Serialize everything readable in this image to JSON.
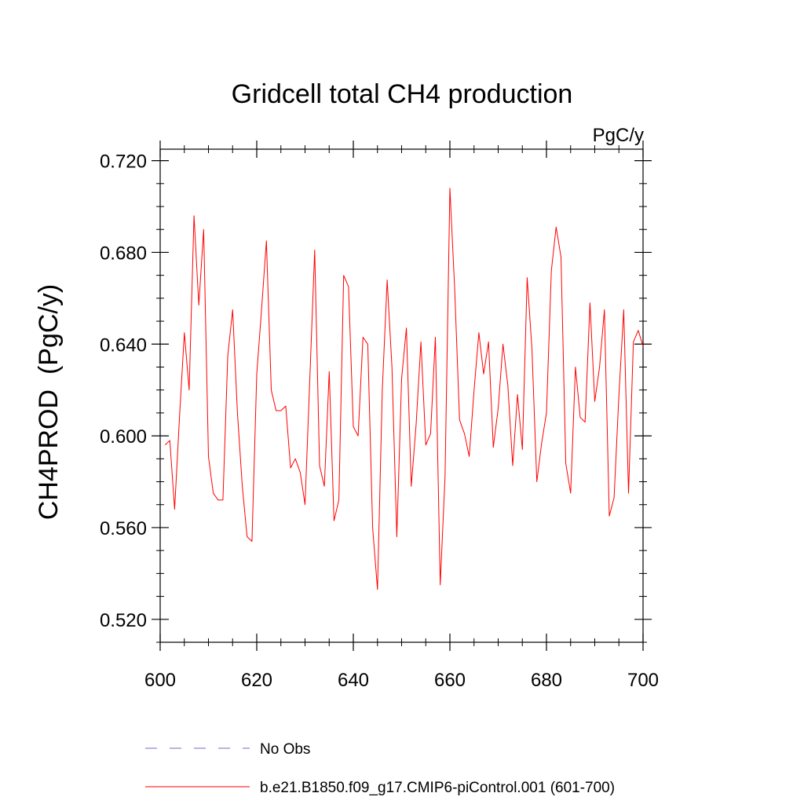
{
  "chart_data": {
    "type": "line",
    "title": "Gridcell total CH4 production",
    "units": "PgC/y",
    "ylabel": "CH4PROD  (PgC/y)",
    "xlabel": "",
    "xlim": [
      600,
      700
    ],
    "ylim": [
      0.51,
      0.725
    ],
    "x_ticks": [
      600,
      620,
      640,
      660,
      680,
      700
    ],
    "x_tick_labels": [
      "600",
      "620",
      "640",
      "660",
      "680",
      "700"
    ],
    "y_ticks": [
      0.52,
      0.56,
      0.6,
      0.64,
      0.68,
      0.72
    ],
    "y_tick_labels": [
      "0.520",
      "0.560",
      "0.600",
      "0.640",
      "0.680",
      "0.720"
    ],
    "series": [
      {
        "name": "b.e21.B1850.f09_g17.CMIP6-piControl.001 (601-700)",
        "color": "#ff0000",
        "dash": "solid",
        "x": [
          601,
          602,
          603,
          604,
          605,
          606,
          607,
          608,
          609,
          610,
          611,
          612,
          613,
          614,
          615,
          616,
          617,
          618,
          619,
          620,
          621,
          622,
          623,
          624,
          625,
          626,
          627,
          628,
          629,
          630,
          631,
          632,
          633,
          634,
          635,
          636,
          637,
          638,
          639,
          640,
          641,
          642,
          643,
          644,
          645,
          646,
          647,
          648,
          649,
          650,
          651,
          652,
          653,
          654,
          655,
          656,
          657,
          658,
          659,
          660,
          661,
          662,
          663,
          664,
          665,
          666,
          667,
          668,
          669,
          670,
          671,
          672,
          673,
          674,
          675,
          676,
          677,
          678,
          679,
          680,
          681,
          682,
          683,
          684,
          685,
          686,
          687,
          688,
          689,
          690,
          691,
          692,
          693,
          694,
          695,
          696,
          697,
          698,
          699,
          700
        ],
        "values": [
          0.596,
          0.598,
          0.568,
          0.608,
          0.645,
          0.62,
          0.696,
          0.657,
          0.69,
          0.591,
          0.575,
          0.572,
          0.572,
          0.635,
          0.655,
          0.61,
          0.578,
          0.556,
          0.554,
          0.627,
          0.655,
          0.685,
          0.62,
          0.611,
          0.611,
          0.613,
          0.586,
          0.59,
          0.584,
          0.57,
          0.625,
          0.681,
          0.587,
          0.578,
          0.628,
          0.563,
          0.572,
          0.67,
          0.665,
          0.604,
          0.6,
          0.643,
          0.64,
          0.56,
          0.533,
          0.62,
          0.668,
          0.63,
          0.556,
          0.625,
          0.647,
          0.578,
          0.605,
          0.641,
          0.596,
          0.601,
          0.643,
          0.535,
          0.582,
          0.708,
          0.664,
          0.607,
          0.601,
          0.591,
          0.62,
          0.645,
          0.627,
          0.641,
          0.595,
          0.612,
          0.64,
          0.622,
          0.587,
          0.618,
          0.594,
          0.669,
          0.638,
          0.58,
          0.597,
          0.61,
          0.672,
          0.691,
          0.678,
          0.588,
          0.575,
          0.63,
          0.608,
          0.606,
          0.658,
          0.615,
          0.63,
          0.655,
          0.565,
          0.573,
          0.618,
          0.655,
          0.575,
          0.641,
          0.646,
          0.639
        ]
      }
    ],
    "legend": [
      {
        "label": "No Obs",
        "color": "#6a6ad0",
        "dash": "dashed"
      },
      {
        "label": "b.e21.B1850.f09_g17.CMIP6-piControl.001 (601-700)",
        "color": "#ff0000",
        "dash": "solid"
      }
    ],
    "grid": false
  }
}
